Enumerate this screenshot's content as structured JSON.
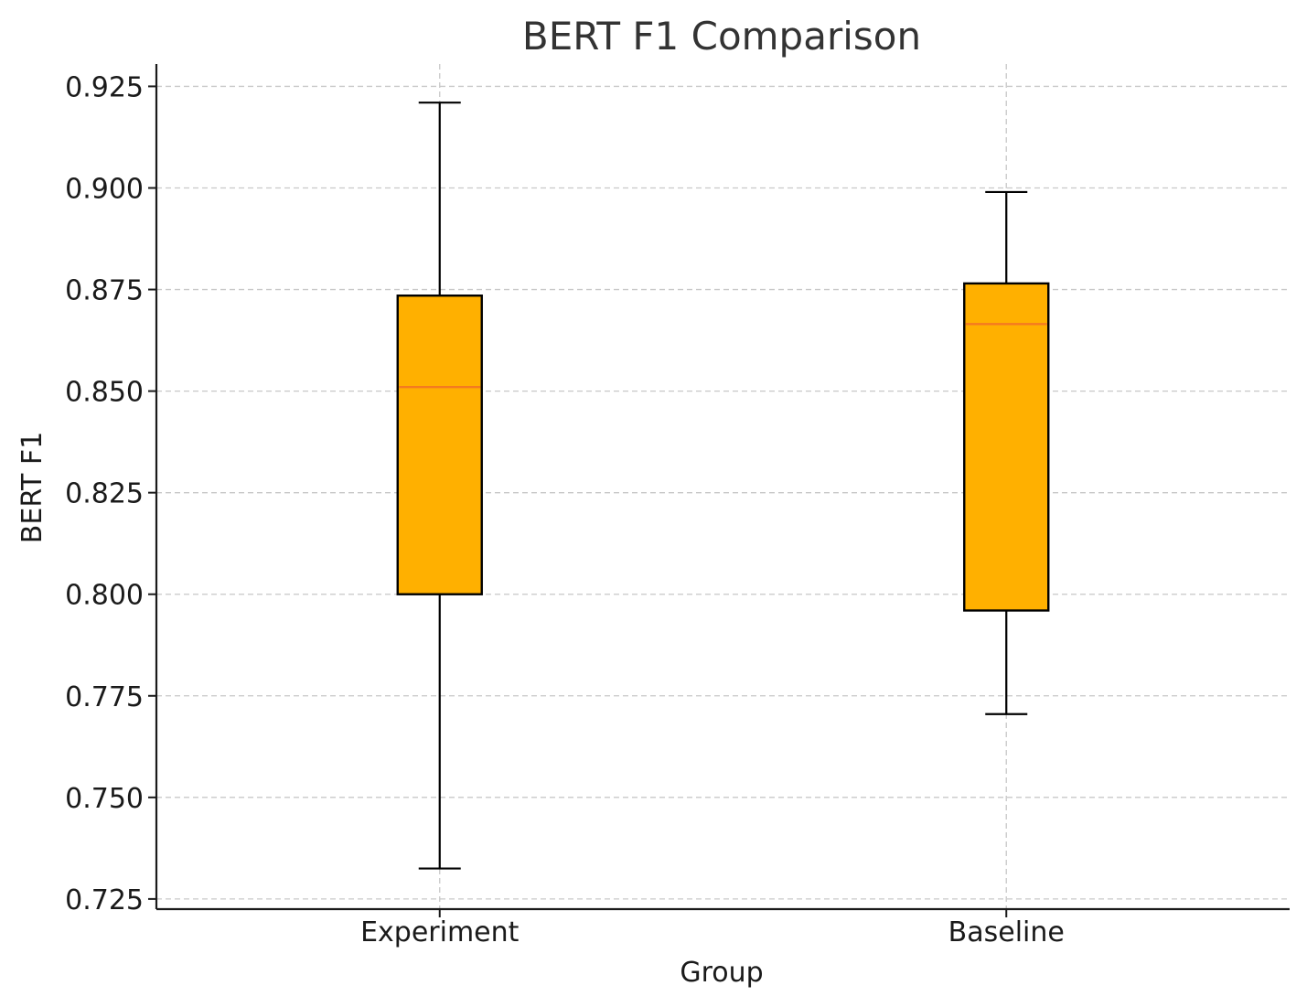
{
  "chart_data": {
    "type": "box",
    "title": "BERT F1 Comparison",
    "xlabel": "Group",
    "ylabel": "BERT F1",
    "ylim": [
      0.7225,
      0.9305
    ],
    "yticks": [
      0.725,
      0.75,
      0.775,
      0.8,
      0.825,
      0.85,
      0.875,
      0.9,
      0.925
    ],
    "ytick_labels": [
      "0.725",
      "0.750",
      "0.775",
      "0.800",
      "0.825",
      "0.850",
      "0.875",
      "0.900",
      "0.925"
    ],
    "categories": [
      "Experiment",
      "Baseline"
    ],
    "grid": true,
    "box_color": "#FFB000",
    "median_color": "#F47A20",
    "boxes": [
      {
        "label": "Experiment",
        "whisker_low": 0.7325,
        "q1": 0.8,
        "median": 0.851,
        "q3": 0.8735,
        "whisker_high": 0.921
      },
      {
        "label": "Baseline",
        "whisker_low": 0.7705,
        "q1": 0.796,
        "median": 0.8665,
        "q3": 0.8765,
        "whisker_high": 0.899
      }
    ]
  }
}
